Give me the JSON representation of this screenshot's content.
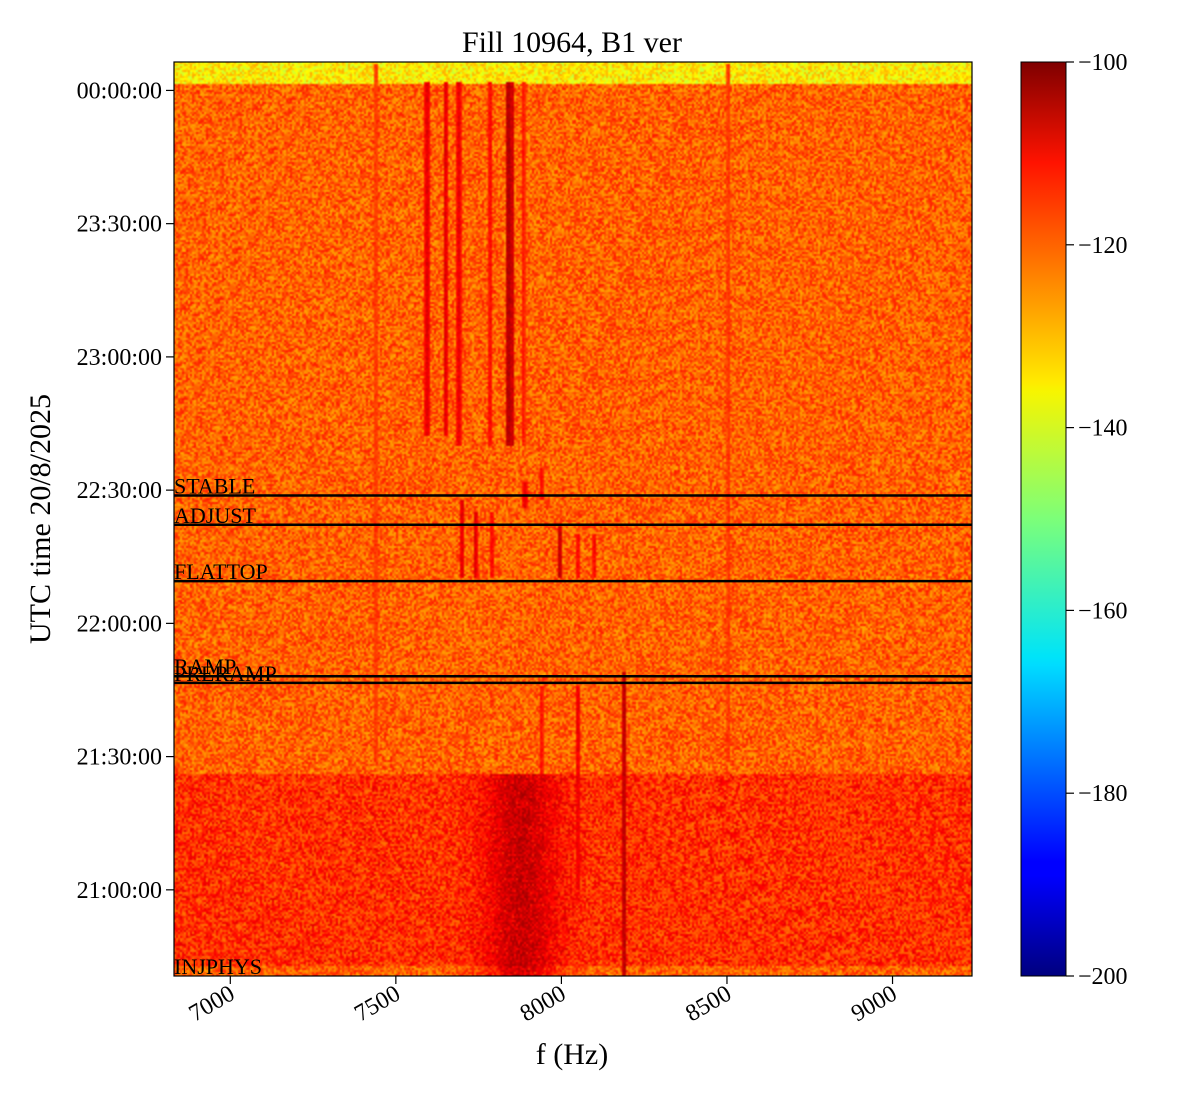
{
  "chart_data": {
    "type": "heatmap",
    "title": "Fill 10964, B1 ver",
    "xlabel": "f (Hz)",
    "ylabel": "UTC time 20/8/2025",
    "xlim": [
      6830,
      9240
    ],
    "x_ticks": [
      {
        "value": 7000,
        "label": "7000"
      },
      {
        "value": 7500,
        "label": "7500"
      },
      {
        "value": 8000,
        "label": "8000"
      },
      {
        "value": 8500,
        "label": "8500"
      },
      {
        "value": 9000,
        "label": "9000"
      }
    ],
    "ylim_minutes": [
      1240.6,
      1446.4
    ],
    "y_ticks": [
      {
        "minutes": 1440,
        "label": "00:00:00"
      },
      {
        "minutes": 1410,
        "label": "23:30:00"
      },
      {
        "minutes": 1380,
        "label": "23:00:00"
      },
      {
        "minutes": 1350,
        "label": "22:30:00"
      },
      {
        "minutes": 1320,
        "label": "22:00:00"
      },
      {
        "minutes": 1290,
        "label": "21:30:00"
      },
      {
        "minutes": 1260,
        "label": "21:00:00"
      }
    ],
    "colorbar": {
      "range": [
        -200,
        -100
      ],
      "colormap": "jet",
      "ticks": [
        {
          "value": -100,
          "label": "−100"
        },
        {
          "value": -120,
          "label": "−120"
        },
        {
          "value": -140,
          "label": "−140"
        },
        {
          "value": -160,
          "label": "−160"
        },
        {
          "value": -180,
          "label": "−180"
        },
        {
          "value": -200,
          "label": "−200"
        }
      ]
    },
    "phases": [
      {
        "label": "STABLE",
        "minutes": 1348.8
      },
      {
        "label": "ADJUST",
        "minutes": 1342.2
      },
      {
        "label": "FLATTOP",
        "minutes": 1329.5
      },
      {
        "label": "RAMP",
        "minutes": 1308.1
      },
      {
        "label": "PRERAMP",
        "minutes": 1306.6
      },
      {
        "label": "INJPHYS",
        "minutes": 1240.6
      }
    ],
    "background_level_db": -122,
    "lines": [
      {
        "f": 7440,
        "t_start": 1289,
        "t_end": 1446,
        "db": -117
      },
      {
        "f": 8505,
        "t_start": 1289,
        "t_end": 1446,
        "db": -117
      },
      {
        "f": 7595,
        "t_start": 1362,
        "t_end": 1442,
        "db": -109
      },
      {
        "f": 7650,
        "t_start": 1362,
        "t_end": 1442,
        "db": -109
      },
      {
        "f": 7690,
        "t_start": 1360,
        "t_end": 1442,
        "db": -110
      },
      {
        "f": 7785,
        "t_start": 1360,
        "t_end": 1442,
        "db": -112
      },
      {
        "f": 7840,
        "t_start": 1360,
        "t_end": 1442,
        "db": -104
      },
      {
        "f": 7850,
        "t_start": 1360,
        "t_end": 1442,
        "db": -106
      },
      {
        "f": 7885,
        "t_start": 1360,
        "t_end": 1442,
        "db": -114
      },
      {
        "f": 7700,
        "t_start": 1330,
        "t_end": 1348,
        "db": -109
      },
      {
        "f": 7740,
        "t_start": 1330,
        "t_end": 1345,
        "db": -109
      },
      {
        "f": 7790,
        "t_start": 1330,
        "t_end": 1345,
        "db": -112
      },
      {
        "f": 7890,
        "t_start": 1346,
        "t_end": 1352,
        "db": -110
      },
      {
        "f": 7940,
        "t_start": 1348,
        "t_end": 1355,
        "db": -112
      },
      {
        "f": 7995,
        "t_start": 1330,
        "t_end": 1342,
        "db": -106
      },
      {
        "f": 8050,
        "t_start": 1330,
        "t_end": 1340,
        "db": -112
      },
      {
        "f": 8100,
        "t_start": 1330,
        "t_end": 1340,
        "db": -112
      },
      {
        "f": 8050,
        "t_start": 1260,
        "t_end": 1306,
        "db": -110
      },
      {
        "f": 8190,
        "t_start": 1240.6,
        "t_end": 1309,
        "db": -105
      },
      {
        "f": 7940,
        "t_start": 1280,
        "t_end": 1306,
        "db": -113
      },
      {
        "f": 7880,
        "t_start": 1240.6,
        "t_end": 1286,
        "db": -110
      }
    ],
    "regions": [
      {
        "t_start": 1243,
        "t_end": 1286,
        "db_offset": 5
      },
      {
        "t_start": 1441.5,
        "t_end": 1446.4,
        "db_offset": -14
      }
    ],
    "blob": {
      "f_center": 7880,
      "f_width": 160,
      "t_start": 1240.6,
      "t_end": 1286,
      "db": -103
    }
  }
}
